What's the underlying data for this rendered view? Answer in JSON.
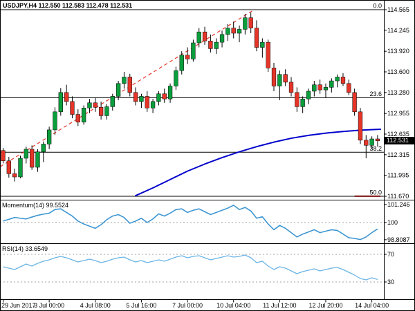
{
  "header": {
    "symbol_line": "USDJPY,H4 112.550 112.583 112.478 112.531"
  },
  "colors": {
    "background": "#ffffff",
    "border": "#000000",
    "bull": "#0a9e3c",
    "bear": "#e53528",
    "wick": "#000000",
    "ma": "#0000cc",
    "trendline": "#e53528",
    "momentum_line": "#3e96d2",
    "rsi_line": "#6ab4e4",
    "level_dash": "#a0a0a0",
    "fib_line": "#000000",
    "price_tag_bg": "#000000",
    "price_tag_text": "#ffffff",
    "base_mark": "#7b1010"
  },
  "chart_data": {
    "type": "candlestick",
    "symbol": "USDJPY",
    "timeframe": "H4",
    "quote": {
      "open": "112.550",
      "high": "112.583",
      "low": "112.478",
      "close": "112.531"
    },
    "current_price": "112.531",
    "price_axis": {
      "min": 111.67,
      "max": 114.565,
      "ticks": [
        {
          "label": "114.565",
          "price": 114.565
        },
        {
          "label": "114.245",
          "price": 114.245
        },
        {
          "label": "113.920",
          "price": 113.92
        },
        {
          "label": "113.600",
          "price": 113.6
        },
        {
          "label": "113.280",
          "price": 113.28
        },
        {
          "label": "112.955",
          "price": 112.955
        },
        {
          "label": "112.635",
          "price": 112.635
        },
        {
          "label": "112.315",
          "price": 112.315
        },
        {
          "label": "111.995",
          "price": 111.995
        },
        {
          "label": "111.670",
          "price": 111.67
        }
      ]
    },
    "x_axis": {
      "ticks": [
        {
          "bar": 0,
          "label": "29 Jun 2017"
        },
        {
          "bar": 8,
          "label": "3 Jul 00:00"
        },
        {
          "bar": 16,
          "label": "4 Jul 08:00"
        },
        {
          "bar": 24,
          "label": "5 Jul 16:00"
        },
        {
          "bar": 32,
          "label": "7 Jul 00:00"
        },
        {
          "bar": 40,
          "label": "10 Jul 04:00"
        },
        {
          "bar": 48,
          "label": "11 Jul 12:00"
        },
        {
          "bar": 56,
          "label": "12 Jul 20:00"
        },
        {
          "bar": 64,
          "label": "14 Jul 04:00"
        }
      ]
    },
    "candles": [
      [
        112.38,
        112.42,
        112.18,
        112.22
      ],
      [
        112.22,
        112.28,
        111.96,
        112.02
      ],
      [
        112.02,
        112.1,
        111.9,
        111.97
      ],
      [
        111.97,
        112.3,
        111.95,
        112.26
      ],
      [
        112.26,
        112.44,
        112.18,
        112.4
      ],
      [
        112.4,
        112.46,
        112.08,
        112.12
      ],
      [
        112.12,
        112.4,
        112.05,
        112.36
      ],
      [
        112.36,
        112.52,
        112.2,
        112.48
      ],
      [
        112.48,
        112.75,
        112.4,
        112.7
      ],
      [
        112.7,
        113.05,
        112.62,
        112.98
      ],
      [
        112.98,
        113.35,
        112.92,
        113.28
      ],
      [
        113.28,
        113.4,
        113.08,
        113.14
      ],
      [
        113.14,
        113.22,
        112.88,
        112.94
      ],
      [
        112.94,
        113.02,
        112.76,
        112.82
      ],
      [
        112.82,
        113.08,
        112.78,
        113.04
      ],
      [
        113.04,
        113.18,
        112.96,
        113.12
      ],
      [
        113.12,
        113.2,
        112.98,
        113.05
      ],
      [
        113.05,
        113.14,
        112.86,
        112.92
      ],
      [
        112.92,
        113.1,
        112.86,
        113.06
      ],
      [
        113.06,
        113.26,
        113.0,
        113.22
      ],
      [
        113.22,
        113.46,
        113.16,
        113.42
      ],
      [
        113.42,
        113.6,
        113.34,
        113.52
      ],
      [
        113.52,
        113.57,
        113.22,
        113.28
      ],
      [
        113.28,
        113.36,
        113.08,
        113.14
      ],
      [
        113.14,
        113.26,
        113.04,
        113.22
      ],
      [
        113.22,
        113.3,
        112.98,
        113.04
      ],
      [
        113.04,
        113.18,
        112.96,
        113.14
      ],
      [
        113.14,
        113.3,
        113.08,
        113.26
      ],
      [
        113.26,
        113.34,
        113.12,
        113.18
      ],
      [
        113.18,
        113.42,
        113.12,
        113.38
      ],
      [
        113.38,
        113.68,
        113.32,
        113.62
      ],
      [
        113.62,
        113.92,
        113.56,
        113.86
      ],
      [
        113.86,
        113.98,
        113.72,
        113.8
      ],
      [
        113.8,
        114.1,
        113.76,
        114.05
      ],
      [
        114.05,
        114.28,
        113.98,
        114.22
      ],
      [
        114.22,
        114.3,
        114.02,
        114.08
      ],
      [
        114.08,
        114.18,
        113.9,
        113.96
      ],
      [
        113.96,
        114.12,
        113.88,
        114.06
      ],
      [
        114.06,
        114.24,
        113.98,
        114.18
      ],
      [
        114.18,
        114.34,
        114.08,
        114.28
      ],
      [
        114.28,
        114.38,
        114.12,
        114.2
      ],
      [
        114.2,
        114.32,
        114.06,
        114.26
      ],
      [
        114.26,
        114.5,
        114.18,
        114.44
      ],
      [
        114.44,
        114.52,
        114.2,
        114.28
      ],
      [
        114.28,
        114.4,
        113.92,
        113.98
      ],
      [
        113.98,
        114.12,
        113.82,
        114.06
      ],
      [
        114.06,
        114.1,
        113.6,
        113.66
      ],
      [
        113.66,
        113.74,
        113.3,
        113.38
      ],
      [
        113.38,
        113.62,
        113.16,
        113.56
      ],
      [
        113.56,
        113.64,
        113.38,
        113.44
      ],
      [
        113.44,
        113.52,
        113.22,
        113.28
      ],
      [
        113.28,
        113.36,
        112.98,
        113.06
      ],
      [
        113.06,
        113.22,
        112.96,
        113.18
      ],
      [
        113.18,
        113.34,
        113.1,
        113.3
      ],
      [
        113.3,
        113.46,
        113.22,
        113.4
      ],
      [
        113.4,
        113.48,
        113.26,
        113.32
      ],
      [
        113.32,
        113.42,
        113.2,
        113.36
      ],
      [
        113.36,
        113.5,
        113.28,
        113.46
      ],
      [
        113.46,
        113.56,
        113.36,
        113.52
      ],
      [
        113.52,
        113.58,
        113.38,
        113.42
      ],
      [
        113.42,
        113.48,
        113.24,
        113.28
      ],
      [
        113.28,
        113.34,
        112.92,
        112.98
      ],
      [
        112.98,
        113.04,
        112.48,
        112.54
      ],
      [
        112.54,
        112.62,
        112.26,
        112.46
      ],
      [
        112.46,
        112.6,
        112.4,
        112.56
      ],
      [
        112.56,
        112.62,
        112.44,
        112.531
      ]
    ],
    "fib_levels": [
      {
        "label": "0.0",
        "price": 114.565
      },
      {
        "label": "23.6",
        "price": 113.199
      },
      {
        "label": "38.2",
        "price": 112.353
      },
      {
        "label": "50.0",
        "price": 111.67
      }
    ],
    "trendline": {
      "from_bar": -0.5,
      "from_price": 112.13,
      "to_bar": 43.5,
      "to_price": 114.56
    },
    "moving_average": {
      "points": [
        [
          23,
          111.68
        ],
        [
          26,
          111.8
        ],
        [
          29,
          111.93
        ],
        [
          32,
          112.06
        ],
        [
          35,
          112.17
        ],
        [
          38,
          112.27
        ],
        [
          41,
          112.36
        ],
        [
          44,
          112.44
        ],
        [
          47,
          112.51
        ],
        [
          50,
          112.57
        ],
        [
          53,
          112.615
        ],
        [
          56,
          112.65
        ],
        [
          59,
          112.675
        ],
        [
          62,
          112.695
        ],
        [
          65.5,
          112.71
        ]
      ]
    },
    "base_mark": {
      "from_bar": 61,
      "to_bar": 65.5,
      "price": 111.672
    },
    "momentum": {
      "label": "Momentum(14) 99.5524",
      "level": 100,
      "axis_ticks": [
        {
          "label": "101.246",
          "value": 101.246
        },
        {
          "label": "100",
          "value": 100
        },
        {
          "label": "98.8087",
          "value": 98.8087
        }
      ],
      "values": [
        100.1,
        100.22,
        100.35,
        100.3,
        100.25,
        100.38,
        100.5,
        100.58,
        100.65,
        100.9,
        100.95,
        100.7,
        100.45,
        100.1,
        99.9,
        99.75,
        99.6,
        99.85,
        100.2,
        100.45,
        100.55,
        100.35,
        99.95,
        100.1,
        100.3,
        100.0,
        100.25,
        100.6,
        100.45,
        100.65,
        100.9,
        100.95,
        100.7,
        100.85,
        100.95,
        100.75,
        100.55,
        100.7,
        100.85,
        101.0,
        101.2,
        100.9,
        101.05,
        100.8,
        100.3,
        100.4,
        99.9,
        99.5,
        99.8,
        99.6,
        99.3,
        99.0,
        99.2,
        99.35,
        99.5,
        99.3,
        99.4,
        99.5,
        99.45,
        99.2,
        98.95,
        98.9,
        98.82,
        99.0,
        99.3,
        99.5524
      ]
    },
    "rsi": {
      "label": "RSI(14) 33.6549",
      "levels": [
        70,
        30
      ],
      "axis_ticks": [
        {
          "label": "70",
          "value": 70
        },
        {
          "label": "30",
          "value": 30
        }
      ],
      "values": [
        52,
        50,
        48,
        52,
        56,
        53,
        57,
        60,
        62,
        65,
        67,
        65,
        62,
        59,
        61,
        63,
        61,
        58,
        60,
        63,
        65,
        66,
        62,
        59,
        61,
        58,
        60,
        62,
        60,
        63,
        66,
        68,
        65,
        67,
        68,
        65,
        62,
        64,
        66,
        68,
        66,
        67,
        69,
        65,
        58,
        60,
        53,
        48,
        52,
        50,
        46,
        42,
        45,
        47,
        49,
        46,
        48,
        50,
        51,
        48,
        44,
        40,
        35,
        33,
        36,
        33.6549
      ]
    }
  }
}
